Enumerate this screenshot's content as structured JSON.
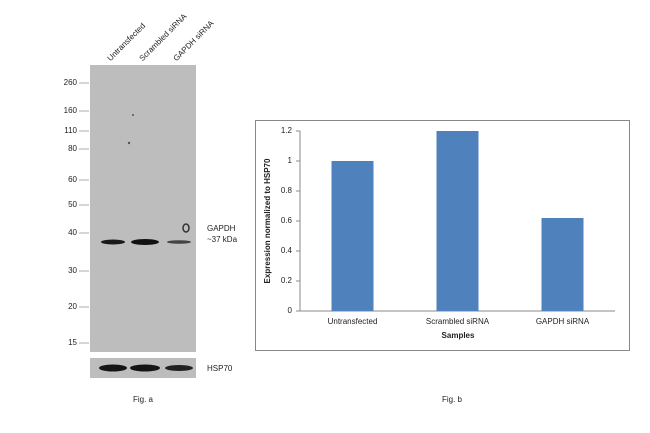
{
  "blot": {
    "lanes": [
      "Untransfected",
      "Scrambled siRNA",
      "GAPDH siRNA"
    ],
    "markers": [
      260,
      160,
      110,
      80,
      60,
      50,
      40,
      30,
      20,
      15
    ],
    "band_label": "GAPDH",
    "band_size": "~37 kDa",
    "loading_label": "HSP70",
    "caption": "Fig. a"
  },
  "chart_data": {
    "type": "bar",
    "caption": "Fig. b",
    "categories": [
      "Untransfected",
      "Scrambled siRNA",
      "GAPDH siRNA"
    ],
    "values": [
      1,
      1.2,
      0.62
    ],
    "color": "#4f81bd",
    "ylim": [
      0,
      1.2
    ],
    "yticks": [
      0,
      0.2,
      0.4,
      0.6,
      0.8,
      1,
      1.2
    ],
    "xlabel": "Samples",
    "ylabel": "Expression normalized to HSP70",
    "grid": false
  }
}
